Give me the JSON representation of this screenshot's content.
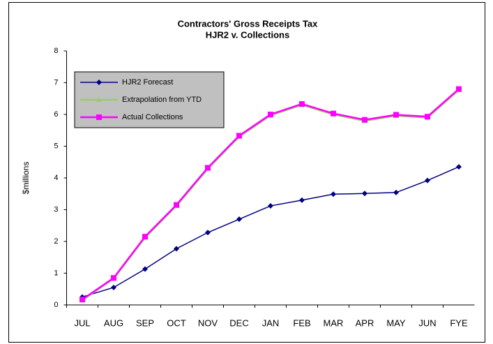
{
  "chart_data": {
    "type": "line",
    "title": "Contractors' Gross Receipts Tax",
    "subtitle": "HJR2 v. Collections",
    "y_label": "$millions",
    "categories": [
      "JUL",
      "AUG",
      "SEP",
      "OCT",
      "NOV",
      "DEC",
      "JAN",
      "FEB",
      "MAR",
      "APR",
      "MAY",
      "JUN",
      "FYE"
    ],
    "series": [
      {
        "name": "HJR2 Forecast",
        "color": "#000080",
        "marker": "diamond",
        "values": [
          0.25,
          0.55,
          1.13,
          1.77,
          2.28,
          2.7,
          3.12,
          3.3,
          3.49,
          3.51,
          3.54,
          3.92,
          4.35
        ]
      },
      {
        "name": "Extrapolation from YTD",
        "color": "#99cc66",
        "marker": "triangle",
        "values": [
          0.15,
          0.83,
          2.12,
          3.12,
          4.29,
          5.3,
          5.97,
          6.3,
          6.0,
          5.8,
          5.96,
          5.9,
          6.77
        ]
      },
      {
        "name": "Actual Collections",
        "color": "#ff00ff",
        "marker": "square",
        "values": [
          0.17,
          0.85,
          2.15,
          3.15,
          4.32,
          5.33,
          6.0,
          6.33,
          6.03,
          5.83,
          5.99,
          5.93,
          6.8
        ]
      }
    ],
    "ylim": [
      0,
      8
    ],
    "yticks": [
      0,
      1,
      2,
      3,
      4,
      5,
      6,
      7,
      8
    ],
    "grid": false,
    "legend": "upper left"
  }
}
